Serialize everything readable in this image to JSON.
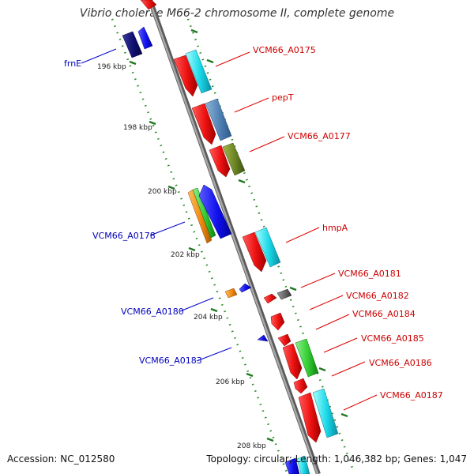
{
  "title": "Vibrio cholerae M66-2 chromosome II, complete genome",
  "colors": {
    "backbone": "#8c8c8c",
    "tick": "#227722",
    "forward_label": "#cc0000",
    "reverse_label": "#0000bb"
  },
  "kbp_ticks": [
    {
      "label": "196 kbp",
      "kbp": 196
    },
    {
      "label": "198 kbp",
      "kbp": 198
    },
    {
      "label": "200 kbp",
      "kbp": 200
    },
    {
      "label": "202 kbp",
      "kbp": 202
    },
    {
      "label": "204 kbp",
      "kbp": 204
    },
    {
      "label": "206 kbp",
      "kbp": 206
    },
    {
      "label": "208 kbp",
      "kbp": 208
    }
  ],
  "genes_forward": [
    {
      "name": "VCM66_A0175",
      "color": "#ee1111"
    },
    {
      "name": "pepT",
      "color": "#ee1111"
    },
    {
      "name": "VCM66_A0177",
      "color": "#ee1111"
    },
    {
      "name": "hmpA",
      "color": "#ee1111"
    },
    {
      "name": "VCM66_A0181",
      "color": "#ee1111"
    },
    {
      "name": "VCM66_A0182",
      "color": "#ee1111"
    },
    {
      "name": "VCM66_A0184",
      "color": "#ee1111"
    },
    {
      "name": "VCM66_A0185",
      "color": "#ee1111"
    },
    {
      "name": "VCM66_A0186",
      "color": "#ee1111"
    },
    {
      "name": "VCM66_A0187",
      "color": "#ee1111"
    }
  ],
  "genes_reverse": [
    {
      "name": "frnE",
      "color": "#1111cc"
    },
    {
      "name": "VCM66_A0178",
      "color": "#1111cc"
    },
    {
      "name": "VCM66_A0180",
      "color": "#1111cc"
    },
    {
      "name": "VCM66_A0183",
      "color": "#1111cc"
    }
  ],
  "footer": {
    "accession": "Accession: NC_012580",
    "summary": "Topology: circular; Length: 1,046,382 bp; Genes: 1,047"
  }
}
